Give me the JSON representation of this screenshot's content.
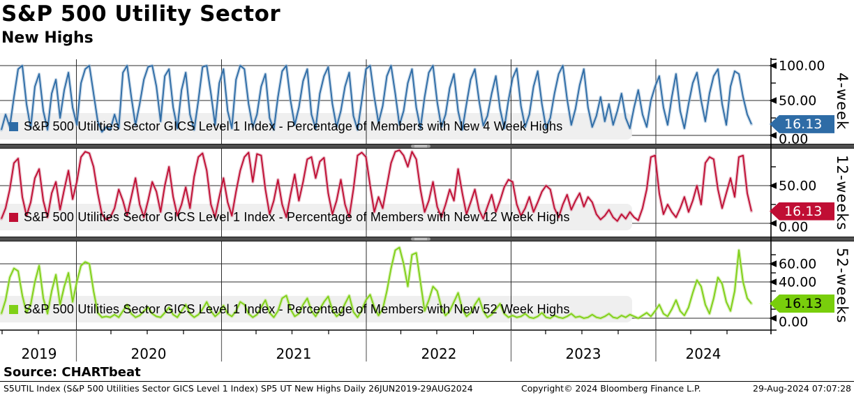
{
  "title": "S&P 500 Utility Sector",
  "subtitle": "New Highs",
  "source_line": "Source: CHARTbeat",
  "footer": {
    "left": "S5UTIL Index (S&P 500 Utilities Sector GICS Level 1 Index) SP5 UT New Highs  Daily 26JUN2019-29AUG2024",
    "center": "Copyright© 2024 Bloomberg Finance L.P.",
    "right": "29-Aug-2024 07:07:28"
  },
  "colors": {
    "grid": "#2b2b2b",
    "legend_band": "#efefef",
    "separator": "#4f4f4f",
    "axis": "#000000"
  },
  "chart_data": {
    "type": "line",
    "title": "S&P 500 Utility Sector - New Highs",
    "x_axis": {
      "start": "26JUN2019",
      "end": "29AUG2024",
      "frequency": "Daily",
      "year_labels": [
        "2019",
        "2020",
        "2021",
        "2022",
        "2023",
        "2024"
      ]
    },
    "legend_position": "inside-lower-left",
    "grid": true,
    "panels": [
      {
        "id": "4-week",
        "axis_title": "4-week",
        "legend": "S&P 500 Utilities Sector GICS Level 1 Index - Percentage of Members with New 4 Week Highs",
        "line_color": "#2e6ca6",
        "halo_color": "#9db9d5",
        "tag_color": "#2e6ca6",
        "tag_text_color": "#ffffff",
        "last_value": 16.13,
        "last_value_label": "16.13",
        "ylim": [
          0,
          108
        ],
        "ticks": [
          {
            "v": 100,
            "label": "100.00"
          },
          {
            "v": 50,
            "label": "50.00"
          },
          {
            "v": 0,
            "label": "0.00"
          }
        ],
        "minor_ticks": [
          75,
          25
        ],
        "values": [
          8,
          30,
          12,
          55,
          95,
          100,
          45,
          10,
          70,
          88,
          35,
          8,
          60,
          80,
          25,
          65,
          90,
          40,
          15,
          75,
          95,
          100,
          60,
          20,
          5,
          12,
          8,
          30,
          10,
          90,
          100,
          55,
          15,
          45,
          80,
          98,
          100,
          70,
          20,
          85,
          95,
          40,
          10,
          65,
          90,
          30,
          8,
          50,
          98,
          100,
          60,
          15,
          75,
          95,
          35,
          10,
          80,
          100,
          95,
          45,
          12,
          30,
          70,
          88,
          25,
          8,
          55,
          92,
          100,
          50,
          15,
          40,
          78,
          95,
          30,
          10,
          60,
          85,
          98,
          45,
          12,
          35,
          70,
          90,
          28,
          8,
          50,
          95,
          100,
          55,
          18,
          42,
          85,
          100,
          60,
          15,
          35,
          75,
          95,
          40,
          10,
          55,
          90,
          100,
          48,
          12,
          30,
          68,
          88,
          35,
          8,
          45,
          80,
          95,
          50,
          14,
          28,
          60,
          85,
          38,
          10,
          50,
          82,
          96,
          42,
          12,
          30,
          70,
          92,
          45,
          10,
          25,
          60,
          88,
          100,
          52,
          15,
          38,
          72,
          95,
          40,
          12,
          28,
          55,
          20,
          45,
          15,
          35,
          60,
          25,
          10,
          40,
          65,
          30,
          12,
          50,
          70,
          85,
          40,
          15,
          55,
          88,
          35,
          10,
          45,
          75,
          90,
          50,
          20,
          60,
          85,
          95,
          45,
          15,
          70,
          92,
          88,
          55,
          30,
          16.13
        ]
      },
      {
        "id": "12-weeks",
        "axis_title": "12-weeks",
        "legend": "S&P 500 Utilities Sector GICS Level 1 Index - Percentage of Members with New 12 Week Highs",
        "line_color": "#c00e34",
        "halo_color": "#d98fa2",
        "tag_color": "#c00e34",
        "tag_text_color": "#ffffff",
        "last_value": 16.13,
        "last_value_label": "16.13",
        "ylim": [
          0,
          100
        ],
        "ticks": [
          {
            "v": 50,
            "label": "50.00"
          },
          {
            "v": 0,
            "label": "0.00"
          }
        ],
        "minor_ticks": [
          75,
          25
        ],
        "values": [
          6,
          20,
          45,
          80,
          86,
          35,
          10,
          28,
          60,
          72,
          30,
          8,
          40,
          55,
          18,
          45,
          70,
          32,
          55,
          88,
          95,
          93,
          75,
          40,
          12,
          5,
          8,
          20,
          45,
          30,
          10,
          35,
          60,
          25,
          8,
          30,
          55,
          42,
          15,
          50,
          75,
          35,
          10,
          25,
          48,
          20,
          62,
          88,
          93,
          70,
          25,
          8,
          35,
          60,
          28,
          10,
          42,
          70,
          88,
          94,
          55,
          92,
          90,
          45,
          12,
          30,
          58,
          25,
          8,
          38,
          65,
          30,
          55,
          85,
          88,
          60,
          82,
          87,
          40,
          12,
          30,
          58,
          25,
          8,
          45,
          90,
          94,
          88,
          50,
          15,
          35,
          20,
          50,
          80,
          95,
          97,
          90,
          75,
          95,
          85,
          45,
          15,
          30,
          55,
          22,
          8,
          25,
          45,
          30,
          72,
          40,
          12,
          28,
          45,
          18,
          6,
          22,
          38,
          15,
          30,
          48,
          58,
          55,
          25,
          10,
          20,
          35,
          15,
          28,
          42,
          50,
          45,
          20,
          8,
          25,
          38,
          18,
          30,
          40,
          22,
          35,
          28,
          12,
          5,
          10,
          18,
          8,
          3,
          12,
          6,
          15,
          8,
          4,
          20,
          45,
          88,
          90,
          40,
          12,
          25,
          15,
          8,
          20,
          35,
          15,
          30,
          50,
          25,
          80,
          88,
          85,
          45,
          20,
          40,
          60,
          35,
          88,
          90,
          40,
          16.13
        ]
      },
      {
        "id": "52-weeks",
        "axis_title": "52-weeks",
        "legend": "S&P 500 Utilities Sector GICS Level 1 Index - Percentage of Members with New 52 Week Highs",
        "line_color": "#80d018",
        "halo_color": "#bce683",
        "tag_color": "#79ce0c",
        "tag_text_color": "#000000",
        "ylim": [
          0,
          85
        ],
        "last_value": 16.13,
        "last_value_label": "16.13",
        "ticks": [
          {
            "v": 60,
            "label": "60.00"
          },
          {
            "v": 40,
            "label": "40.00"
          },
          {
            "v": 0,
            "label": "0.00"
          }
        ],
        "minor_ticks": [
          70,
          50,
          30,
          10
        ],
        "values": [
          5,
          20,
          45,
          55,
          52,
          25,
          6,
          15,
          40,
          58,
          22,
          5,
          30,
          48,
          15,
          35,
          50,
          18,
          40,
          58,
          62,
          60,
          30,
          6,
          1,
          2,
          1,
          4,
          1,
          8,
          15,
          5,
          1,
          3,
          8,
          12,
          5,
          2,
          1,
          6,
          12,
          4,
          1,
          8,
          15,
          5,
          1,
          4,
          10,
          18,
          8,
          2,
          6,
          14,
          5,
          2,
          8,
          18,
          15,
          5,
          1,
          4,
          12,
          20,
          6,
          1,
          8,
          22,
          25,
          10,
          2,
          5,
          15,
          22,
          8,
          2,
          10,
          18,
          24,
          9,
          2,
          6,
          16,
          25,
          7,
          1,
          9,
          20,
          26,
          12,
          3,
          10,
          30,
          55,
          75,
          78,
          60,
          35,
          70,
          72,
          40,
          8,
          20,
          35,
          30,
          12,
          3,
          8,
          18,
          28,
          10,
          2,
          6,
          15,
          22,
          8,
          1,
          4,
          10,
          16,
          5,
          1,
          3,
          1,
          2,
          5,
          1,
          0,
          2,
          6,
          1,
          0,
          3,
          1,
          0,
          2,
          5,
          1,
          2,
          0,
          1,
          4,
          1,
          0,
          2,
          5,
          1,
          0,
          3,
          1,
          4,
          2,
          0,
          3,
          6,
          2,
          8,
          15,
          5,
          2,
          10,
          20,
          8,
          3,
          12,
          28,
          42,
          35,
          15,
          5,
          22,
          45,
          38,
          18,
          8,
          30,
          75,
          40,
          22,
          16.13
        ]
      }
    ]
  }
}
